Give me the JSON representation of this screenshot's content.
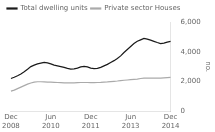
{
  "chart_data": {
    "type": "line",
    "y_label": "no.",
    "categories": [
      "Dec\n2008",
      null,
      null,
      null,
      null,
      null,
      null,
      null,
      null,
      null,
      null,
      null,
      "Jun\n2010",
      null,
      null,
      null,
      null,
      null,
      null,
      null,
      null,
      null,
      null,
      null,
      "Dec\n2011",
      null,
      null,
      null,
      null,
      null,
      null,
      null,
      null,
      null,
      null,
      null,
      "Jun\n2013",
      null,
      null,
      null,
      null,
      null,
      null,
      null,
      null,
      null,
      null,
      null,
      "Dec\n2014"
    ],
    "series": [
      {
        "name": "Total dwelling units",
        "color": "#1a1a1a",
        "values": [
          2200,
          2280,
          2380,
          2500,
          2650,
          2820,
          3000,
          3100,
          3180,
          3230,
          3280,
          3250,
          3180,
          3100,
          3050,
          3000,
          2950,
          2880,
          2830,
          2850,
          2900,
          2980,
          3020,
          2980,
          2900,
          2860,
          2880,
          2950,
          3050,
          3150,
          3280,
          3400,
          3550,
          3720,
          3950,
          4150,
          4350,
          4550,
          4700,
          4800,
          4900,
          4850,
          4780,
          4700,
          4620,
          4550,
          4580,
          4650,
          4700
        ]
      },
      {
        "name": "Private sector Houses",
        "color": "#aaaaaa",
        "values": [
          1350,
          1420,
          1520,
          1620,
          1720,
          1820,
          1900,
          1950,
          1980,
          1980,
          1970,
          1960,
          1950,
          1940,
          1930,
          1920,
          1910,
          1900,
          1900,
          1910,
          1920,
          1930,
          1930,
          1930,
          1920,
          1920,
          1930,
          1940,
          1960,
          1970,
          1990,
          2010,
          2030,
          2060,
          2080,
          2100,
          2120,
          2140,
          2160,
          2200,
          2220,
          2230,
          2230,
          2230,
          2220,
          2220,
          2240,
          2260,
          2270
        ]
      }
    ],
    "ylim": [
      0,
      6000
    ],
    "yticks": [
      0,
      2000,
      4000,
      6000
    ],
    "grid": false,
    "legend": "upper left",
    "marker": "none"
  }
}
